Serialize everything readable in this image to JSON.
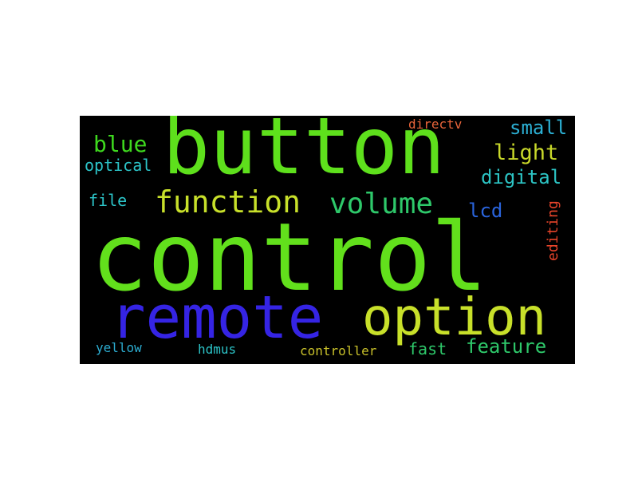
{
  "word_cloud": {
    "background": "#000000",
    "words": [
      {
        "key": "control",
        "text": "control",
        "color": "#62e01c"
      },
      {
        "key": "button",
        "text": "button",
        "color": "#5ee01c"
      },
      {
        "key": "remote",
        "text": "remote",
        "color": "#3524e4"
      },
      {
        "key": "option",
        "text": "option",
        "color": "#c8e02a"
      },
      {
        "key": "function",
        "text": "function",
        "color": "#c8e02a"
      },
      {
        "key": "volume",
        "text": "volume",
        "color": "#2ec86a"
      },
      {
        "key": "blue",
        "text": "blue",
        "color": "#3ed81e"
      },
      {
        "key": "light",
        "text": "light",
        "color": "#c8d82a"
      },
      {
        "key": "digital",
        "text": "digital",
        "color": "#2cc4c4"
      },
      {
        "key": "small",
        "text": "small",
        "color": "#2cb0d4"
      },
      {
        "key": "optical",
        "text": "optical",
        "color": "#2cc4c8"
      },
      {
        "key": "file",
        "text": "file",
        "color": "#2cc4c8"
      },
      {
        "key": "lcd",
        "text": "lcd",
        "color": "#2a64dc"
      },
      {
        "key": "editing",
        "text": "editing",
        "color": "#e8442a"
      },
      {
        "key": "directv",
        "text": "directv",
        "color": "#e8643a"
      },
      {
        "key": "feature",
        "text": "feature",
        "color": "#2ec86a"
      },
      {
        "key": "fast",
        "text": "fast",
        "color": "#2ec86a"
      },
      {
        "key": "controller",
        "text": "controller",
        "color": "#c8c02a"
      },
      {
        "key": "hdmus",
        "text": "hdmus",
        "color": "#2cc4c8"
      },
      {
        "key": "yellow",
        "text": "yellow",
        "color": "#2cacd0"
      }
    ]
  }
}
